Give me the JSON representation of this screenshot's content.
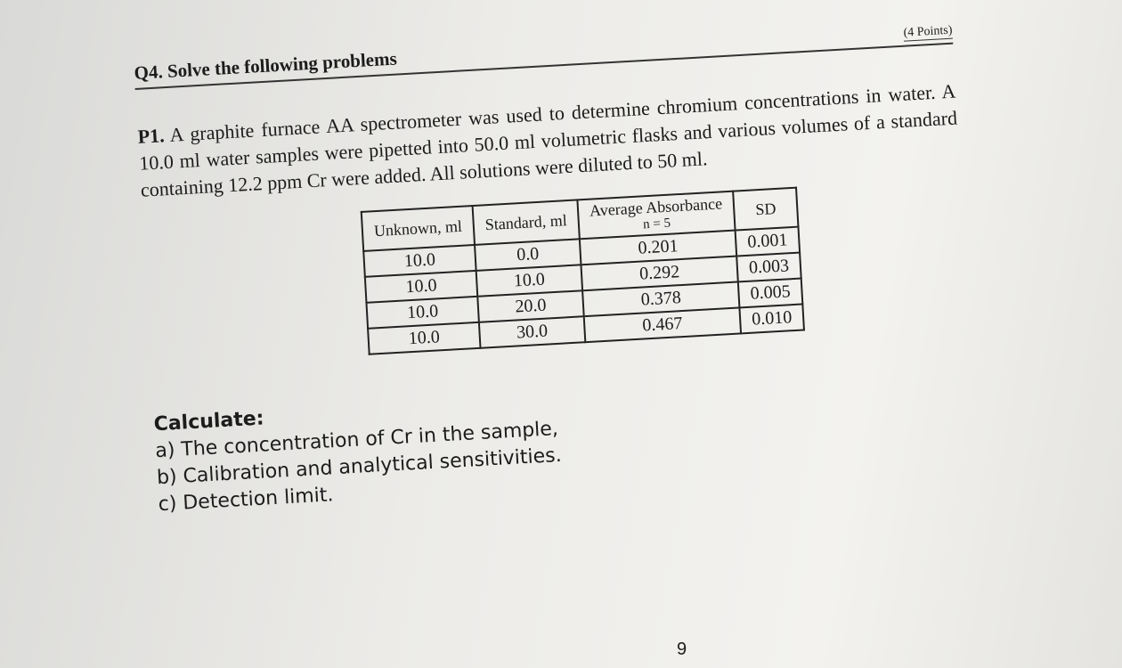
{
  "header": {
    "title": "Q4. Solve the following problems",
    "points": "(4 Points)"
  },
  "problem": {
    "label": "P1.",
    "text": "A graphite furnace AA spectrometer was used to determine chromium concentrations in water. A 10.0 ml water samples were pipetted into 50.0 ml volumetric flasks and various volumes of a standard containing 12.2 ppm Cr were added. All solutions were diluted to 50 ml."
  },
  "table": {
    "headers": [
      "Unknown, ml",
      "Standard, ml",
      "Average Absorbance",
      "SD"
    ],
    "subheader": "n = 5",
    "rows": [
      [
        "10.0",
        "0.0",
        "0.201",
        "0.001"
      ],
      [
        "10.0",
        "10.0",
        "0.292",
        "0.003"
      ],
      [
        "10.0",
        "20.0",
        "0.378",
        "0.005"
      ],
      [
        "10.0",
        "30.0",
        "0.467",
        "0.010"
      ]
    ]
  },
  "calculate": {
    "title": "Calculate:",
    "items": [
      "a) The concentration of Cr in the sample,",
      "b) Calibration and analytical sensitivities.",
      "c) Detection limit."
    ]
  },
  "page_number": "9"
}
